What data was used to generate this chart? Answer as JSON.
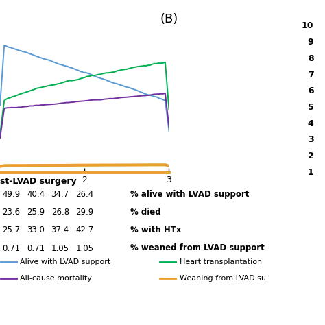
{
  "title": "(B)",
  "xlabel_partial": "st-LVAD surgery",
  "lines": {
    "alive": {
      "color": "#5b9bd5",
      "label": "Alive with LVAD support"
    },
    "died": {
      "color": "#7030a0",
      "label": "All-cause mortality"
    },
    "htx": {
      "color": "#00b050",
      "label": "Heart transplantation"
    },
    "weaned": {
      "color": "#e9a030",
      "label": "Weaning from LVAD su"
    }
  },
  "table_rows": [
    {
      "values": [
        "49.9",
        "40.4",
        "34.7",
        "26.4"
      ],
      "label": "% alive with LVAD support"
    },
    {
      "values": [
        "23.6",
        "25.9",
        "26.8",
        "29.9"
      ],
      "label": "% died"
    },
    {
      "values": [
        "25.7",
        "33.0",
        "37.4",
        "42.7"
      ],
      "label": "% with HTx"
    },
    {
      "values": [
        "0.71",
        "0.71",
        "1.05",
        "1.05"
      ],
      "label": "% weaned from LVAD support"
    }
  ],
  "legend_left": [
    {
      "label": "Alive with LVAD support",
      "color": "#5b9bd5"
    },
    {
      "label": "All-cause mortality",
      "color": "#7030a0"
    }
  ],
  "legend_right": [
    {
      "label": "Heart transplantation",
      "color": "#00b050"
    },
    {
      "label": "Weaning from LVAD su",
      "color": "#e9a030"
    }
  ],
  "axis_color": "#e9a030",
  "bg_color": "#ffffff",
  "right_ticks": [
    10,
    9,
    8,
    7,
    6,
    5,
    4,
    3,
    2,
    1
  ]
}
